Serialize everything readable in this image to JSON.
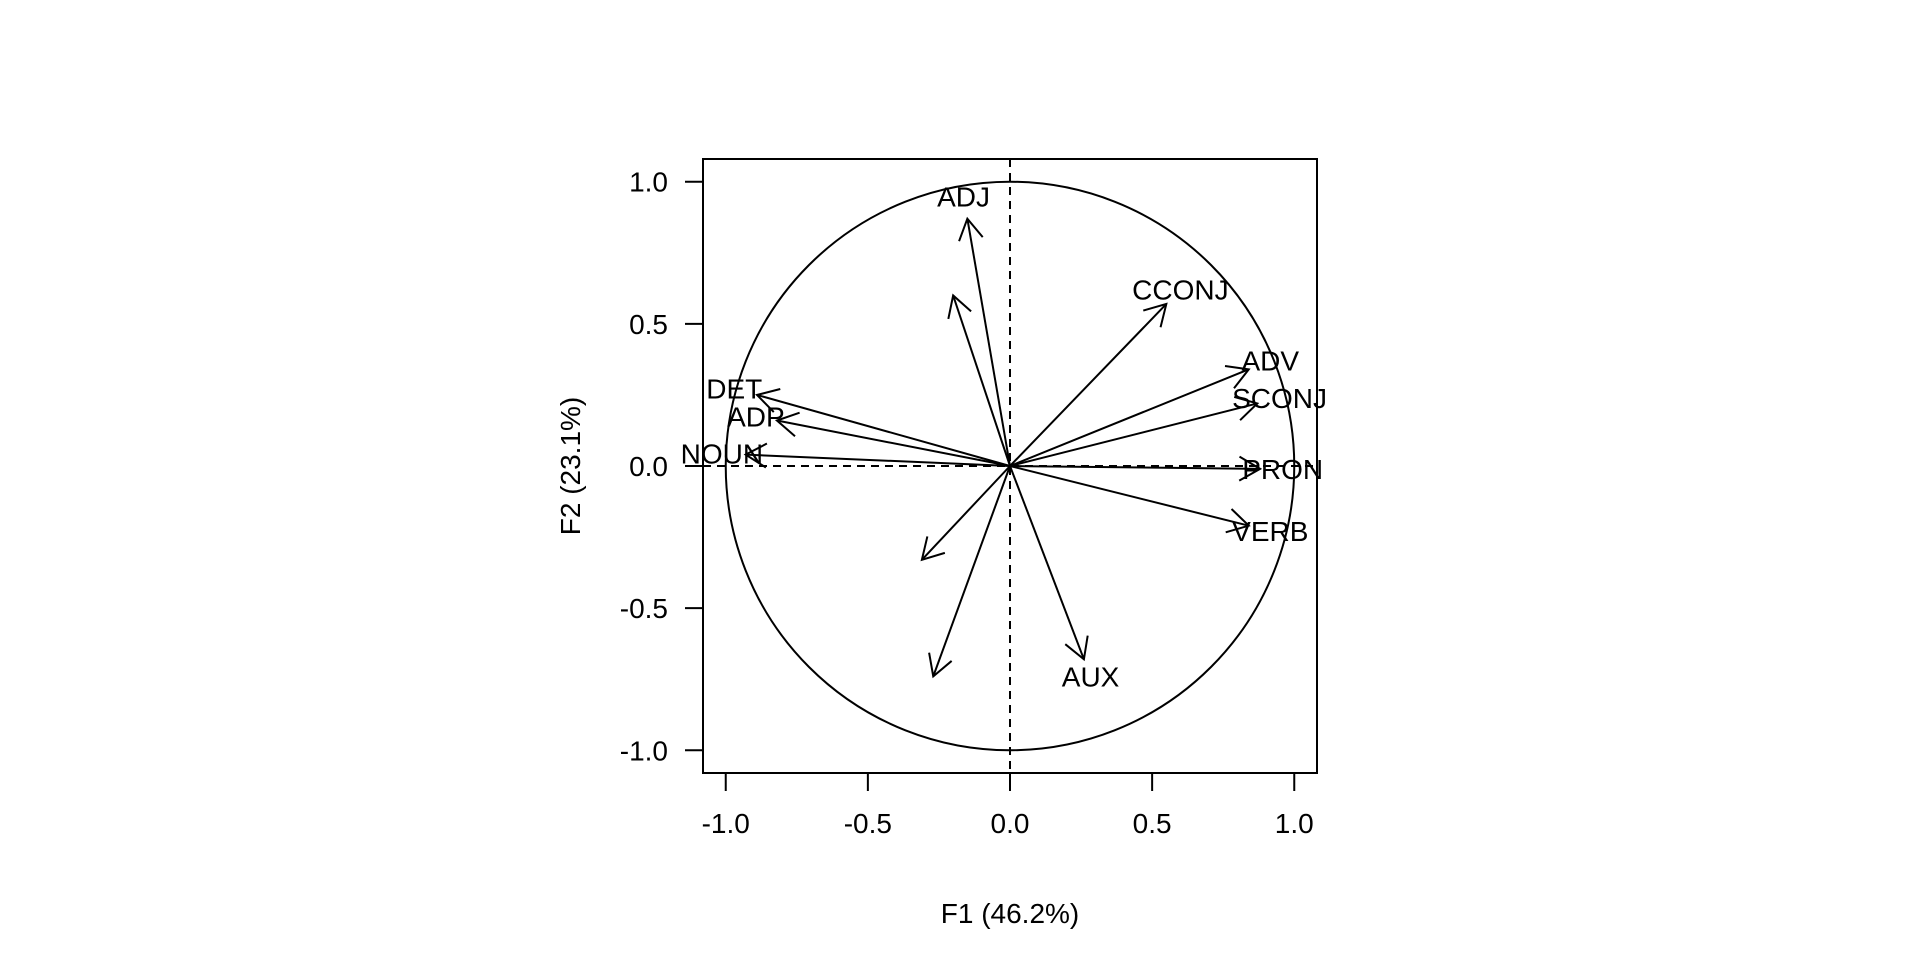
{
  "chart_data": {
    "type": "scatter",
    "subtype": "pca-correlation-circle",
    "title": "",
    "xlabel": "F1 (46.2%)",
    "ylabel": "F2 (23.1%)",
    "xlim": [
      -1.08,
      1.08
    ],
    "ylim": [
      -1.08,
      1.08
    ],
    "xticks": [
      -1.0,
      -0.5,
      0.0,
      0.5,
      1.0
    ],
    "yticks": [
      -1.0,
      -0.5,
      0.0,
      0.5,
      1.0
    ],
    "xtick_labels": [
      "-1.0",
      "-0.5",
      "0.0",
      "0.5",
      "1.0"
    ],
    "ytick_labels": [
      "-1.0",
      "-0.5",
      "0.0",
      "0.5",
      "1.0"
    ],
    "reference_lines": "dashed at x=0 and y=0",
    "unit_circle": true,
    "grid": false,
    "vectors": [
      {
        "label": "ADJ",
        "x": -0.15,
        "y": 0.87
      },
      {
        "label": "CCONJ",
        "x": 0.55,
        "y": 0.57
      },
      {
        "label": "ADV",
        "x": 0.84,
        "y": 0.34
      },
      {
        "label": "SCONJ",
        "x": 0.87,
        "y": 0.22
      },
      {
        "label": "PRON",
        "x": 0.88,
        "y": -0.01
      },
      {
        "label": "VERB",
        "x": 0.84,
        "y": -0.21
      },
      {
        "label": "AUX",
        "x": 0.26,
        "y": -0.68
      },
      {
        "label": "DET",
        "x": -0.89,
        "y": 0.25
      },
      {
        "label": "ADP",
        "x": -0.82,
        "y": 0.16
      },
      {
        "label": "NOUN",
        "x": -0.93,
        "y": 0.04
      },
      {
        "label": "",
        "x": -0.2,
        "y": 0.6
      },
      {
        "label": "",
        "x": -0.31,
        "y": -0.33
      },
      {
        "label": "",
        "x": -0.27,
        "y": -0.74
      }
    ]
  }
}
